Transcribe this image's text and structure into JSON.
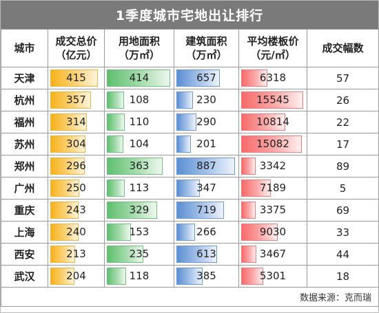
{
  "title": "1季度城市宅地出让排行",
  "headers": {
    "city": "城市",
    "deal_total": [
      "成交总价",
      "（亿元）"
    ],
    "land_area": [
      "用地面积",
      "（万㎡）"
    ],
    "build_area": [
      "建筑面积",
      "（万㎡）"
    ],
    "avg_floor_price": [
      "平均楼板价",
      "（元/㎡）"
    ],
    "premium": "成交幅数"
  },
  "colors": {
    "title_bg": "#7a7a7a",
    "gold": "#f7b21b",
    "green": "#5fbf6e",
    "blue": "#5b8fd3",
    "red": "#f76a6a"
  },
  "rows": [
    {
      "city": "天津",
      "deal_total": 415,
      "land_area": 414,
      "build_area": 657,
      "avg_floor_price": 6318,
      "count": 57
    },
    {
      "city": "杭州",
      "deal_total": 357,
      "land_area": 108,
      "build_area": 230,
      "avg_floor_price": 15545,
      "count": 26
    },
    {
      "city": "福州",
      "deal_total": 314,
      "land_area": 110,
      "build_area": 290,
      "avg_floor_price": 10814,
      "count": 22
    },
    {
      "city": "苏州",
      "deal_total": 304,
      "land_area": 104,
      "build_area": 201,
      "avg_floor_price": 15082,
      "count": 17
    },
    {
      "city": "郑州",
      "deal_total": 296,
      "land_area": 363,
      "build_area": 887,
      "avg_floor_price": 3342,
      "count": 89
    },
    {
      "city": "广州",
      "deal_total": 250,
      "land_area": 113,
      "build_area": 347,
      "avg_floor_price": 7189,
      "count": 5
    },
    {
      "city": "重庆",
      "deal_total": 243,
      "land_area": 329,
      "build_area": 719,
      "avg_floor_price": 3375,
      "count": 69
    },
    {
      "city": "上海",
      "deal_total": 240,
      "land_area": 153,
      "build_area": 266,
      "avg_floor_price": 9030,
      "count": 33
    },
    {
      "city": "西安",
      "deal_total": 213,
      "land_area": 235,
      "build_area": 613,
      "avg_floor_price": 3467,
      "count": 44
    },
    {
      "city": "武汉",
      "deal_total": 204,
      "land_area": 118,
      "build_area": 385,
      "avg_floor_price": 5301,
      "count": 18
    }
  ],
  "footer": "数据来源：克而瑞"
}
